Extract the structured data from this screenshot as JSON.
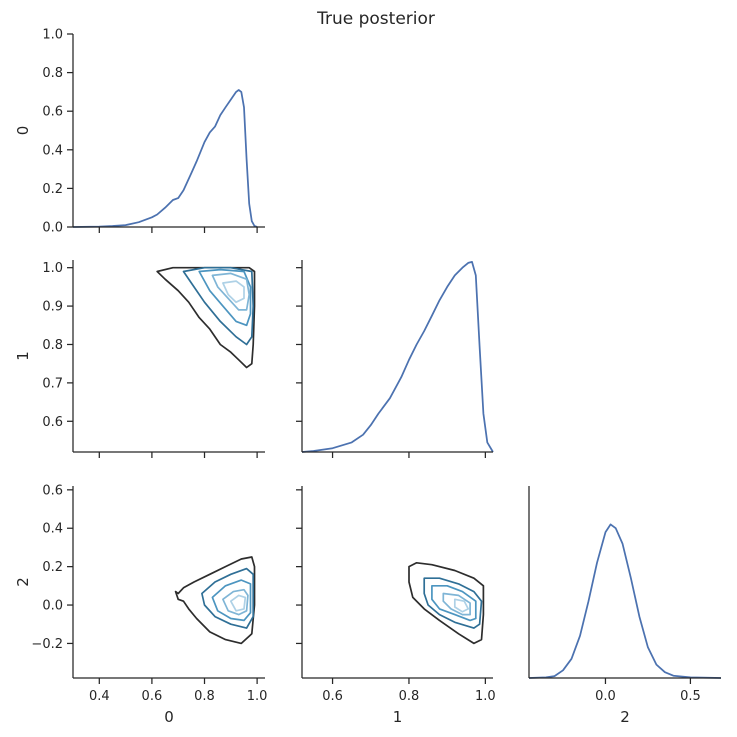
{
  "chart_data": {
    "type": "pairplot",
    "title": "True posterior",
    "variables": [
      "0",
      "1",
      "2"
    ],
    "colors": {
      "marginal_line": "#4c72b0",
      "contour_levels": [
        "#2d2d2d",
        "#2f6f96",
        "#4c95c0",
        "#7fb5d6",
        "#aed1e6"
      ]
    },
    "panels": [
      {
        "id": "diag-0",
        "kind": "marginal-kde",
        "variable": "0",
        "xlim": [
          0.3,
          1.03
        ],
        "ylim": [
          0,
          1.0
        ],
        "yticks": [
          0.0,
          0.2,
          0.4,
          0.6,
          0.8,
          1.0
        ],
        "ylabel": "0",
        "points": [
          [
            0.3,
            0
          ],
          [
            0.4,
            0.002
          ],
          [
            0.45,
            0.005
          ],
          [
            0.5,
            0.01
          ],
          [
            0.55,
            0.025
          ],
          [
            0.6,
            0.05
          ],
          [
            0.62,
            0.065
          ],
          [
            0.65,
            0.1
          ],
          [
            0.68,
            0.14
          ],
          [
            0.7,
            0.15
          ],
          [
            0.72,
            0.19
          ],
          [
            0.75,
            0.28
          ],
          [
            0.77,
            0.34
          ],
          [
            0.8,
            0.44
          ],
          [
            0.82,
            0.49
          ],
          [
            0.84,
            0.52
          ],
          [
            0.86,
            0.58
          ],
          [
            0.88,
            0.62
          ],
          [
            0.9,
            0.66
          ],
          [
            0.92,
            0.7
          ],
          [
            0.93,
            0.71
          ],
          [
            0.94,
            0.7
          ],
          [
            0.95,
            0.62
          ],
          [
            0.96,
            0.35
          ],
          [
            0.97,
            0.12
          ],
          [
            0.98,
            0.03
          ],
          [
            0.99,
            0.005
          ],
          [
            1.0,
            0.0
          ]
        ]
      },
      {
        "id": "pair-0-1",
        "kind": "kde-contours",
        "xlim": [
          0.3,
          1.03
        ],
        "ylim": [
          0.52,
          1.02
        ],
        "yticks": [
          0.6,
          0.7,
          0.8,
          0.9,
          1.0
        ],
        "ylabel": "1",
        "contours": [
          [
            [
              0.62,
              0.99
            ],
            [
              0.68,
              1.0
            ],
            [
              0.8,
              1.0
            ],
            [
              0.92,
              1.0
            ],
            [
              0.97,
              1.0
            ],
            [
              0.99,
              0.99
            ],
            [
              0.99,
              0.9
            ],
            [
              0.985,
              0.8
            ],
            [
              0.98,
              0.75
            ],
            [
              0.96,
              0.74
            ],
            [
              0.93,
              0.76
            ],
            [
              0.9,
              0.78
            ],
            [
              0.86,
              0.8
            ],
            [
              0.82,
              0.84
            ],
            [
              0.78,
              0.87
            ],
            [
              0.74,
              0.91
            ],
            [
              0.7,
              0.94
            ],
            [
              0.65,
              0.97
            ],
            [
              0.62,
              0.99
            ]
          ],
          [
            [
              0.72,
              0.99
            ],
            [
              0.8,
              1.0
            ],
            [
              0.9,
              1.0
            ],
            [
              0.98,
              0.99
            ],
            [
              0.985,
              0.9
            ],
            [
              0.98,
              0.82
            ],
            [
              0.96,
              0.8
            ],
            [
              0.92,
              0.82
            ],
            [
              0.86,
              0.86
            ],
            [
              0.8,
              0.91
            ],
            [
              0.76,
              0.95
            ],
            [
              0.72,
              0.99
            ]
          ],
          [
            [
              0.78,
              0.99
            ],
            [
              0.86,
              0.995
            ],
            [
              0.95,
              0.99
            ],
            [
              0.975,
              0.95
            ],
            [
              0.975,
              0.88
            ],
            [
              0.96,
              0.85
            ],
            [
              0.92,
              0.86
            ],
            [
              0.87,
              0.9
            ],
            [
              0.82,
              0.94
            ],
            [
              0.78,
              0.99
            ]
          ],
          [
            [
              0.83,
              0.98
            ],
            [
              0.9,
              0.985
            ],
            [
              0.96,
              0.97
            ],
            [
              0.97,
              0.93
            ],
            [
              0.96,
              0.89
            ],
            [
              0.93,
              0.89
            ],
            [
              0.89,
              0.92
            ],
            [
              0.85,
              0.95
            ],
            [
              0.83,
              0.98
            ]
          ],
          [
            [
              0.87,
              0.96
            ],
            [
              0.92,
              0.965
            ],
            [
              0.95,
              0.95
            ],
            [
              0.95,
              0.92
            ],
            [
              0.92,
              0.91
            ],
            [
              0.89,
              0.93
            ],
            [
              0.87,
              0.96
            ]
          ]
        ]
      },
      {
        "id": "diag-1",
        "kind": "marginal-kde",
        "variable": "1",
        "xlim": [
          0.52,
          1.02
        ],
        "ylim": [
          0,
          1.0
        ],
        "points": [
          [
            0.52,
            0
          ],
          [
            0.55,
            0.005
          ],
          [
            0.6,
            0.02
          ],
          [
            0.65,
            0.05
          ],
          [
            0.68,
            0.09
          ],
          [
            0.7,
            0.14
          ],
          [
            0.72,
            0.2
          ],
          [
            0.75,
            0.28
          ],
          [
            0.78,
            0.39
          ],
          [
            0.8,
            0.48
          ],
          [
            0.82,
            0.56
          ],
          [
            0.84,
            0.63
          ],
          [
            0.86,
            0.71
          ],
          [
            0.88,
            0.79
          ],
          [
            0.9,
            0.86
          ],
          [
            0.92,
            0.92
          ],
          [
            0.94,
            0.96
          ],
          [
            0.955,
            0.985
          ],
          [
            0.965,
            0.99
          ],
          [
            0.975,
            0.92
          ],
          [
            0.985,
            0.55
          ],
          [
            0.995,
            0.2
          ],
          [
            1.005,
            0.05
          ],
          [
            1.02,
            0.0
          ]
        ]
      },
      {
        "id": "pair-0-2",
        "kind": "kde-contours",
        "xlim": [
          0.3,
          1.03
        ],
        "ylim": [
          -0.38,
          0.62
        ],
        "yticks": [
          -0.2,
          0.0,
          0.2,
          0.4,
          0.6
        ],
        "xticks": [
          0.4,
          0.6,
          0.8,
          1.0
        ],
        "xlabel": "0",
        "ylabel": "2",
        "contours": [
          [
            [
              0.7,
              0.06
            ],
            [
              0.72,
              0.09
            ],
            [
              0.76,
              0.12
            ],
            [
              0.82,
              0.16
            ],
            [
              0.88,
              0.2
            ],
            [
              0.94,
              0.24
            ],
            [
              0.98,
              0.25
            ],
            [
              0.99,
              0.2
            ],
            [
              0.99,
              0.0
            ],
            [
              0.98,
              -0.15
            ],
            [
              0.94,
              -0.2
            ],
            [
              0.88,
              -0.18
            ],
            [
              0.82,
              -0.14
            ],
            [
              0.77,
              -0.07
            ],
            [
              0.74,
              -0.02
            ],
            [
              0.72,
              0.02
            ],
            [
              0.7,
              0.03
            ],
            [
              0.69,
              0.07
            ],
            [
              0.7,
              0.06
            ]
          ],
          [
            [
              0.79,
              0.06
            ],
            [
              0.84,
              0.12
            ],
            [
              0.9,
              0.16
            ],
            [
              0.96,
              0.19
            ],
            [
              0.985,
              0.16
            ],
            [
              0.985,
              -0.06
            ],
            [
              0.96,
              -0.12
            ],
            [
              0.9,
              -0.1
            ],
            [
              0.84,
              -0.06
            ],
            [
              0.8,
              0.0
            ],
            [
              0.79,
              0.06
            ]
          ],
          [
            [
              0.83,
              0.04
            ],
            [
              0.88,
              0.1
            ],
            [
              0.94,
              0.13
            ],
            [
              0.975,
              0.11
            ],
            [
              0.975,
              -0.04
            ],
            [
              0.95,
              -0.08
            ],
            [
              0.9,
              -0.07
            ],
            [
              0.85,
              -0.03
            ],
            [
              0.83,
              0.04
            ]
          ],
          [
            [
              0.87,
              0.03
            ],
            [
              0.91,
              0.07
            ],
            [
              0.95,
              0.08
            ],
            [
              0.965,
              0.05
            ],
            [
              0.96,
              -0.03
            ],
            [
              0.93,
              -0.05
            ],
            [
              0.89,
              -0.03
            ],
            [
              0.87,
              0.03
            ]
          ],
          [
            [
              0.9,
              0.02
            ],
            [
              0.93,
              0.05
            ],
            [
              0.955,
              0.04
            ],
            [
              0.95,
              -0.02
            ],
            [
              0.92,
              -0.03
            ],
            [
              0.9,
              0.02
            ]
          ]
        ]
      },
      {
        "id": "pair-1-2",
        "kind": "kde-contours",
        "xlim": [
          0.52,
          1.02
        ],
        "ylim": [
          -0.38,
          0.62
        ],
        "xticks": [
          0.6,
          0.8,
          1.0
        ],
        "xlabel": "1",
        "contours": [
          [
            [
              0.8,
              0.2
            ],
            [
              0.82,
              0.22
            ],
            [
              0.86,
              0.21
            ],
            [
              0.92,
              0.18
            ],
            [
              0.97,
              0.14
            ],
            [
              0.995,
              0.1
            ],
            [
              0.995,
              -0.05
            ],
            [
              0.99,
              -0.18
            ],
            [
              0.97,
              -0.2
            ],
            [
              0.93,
              -0.15
            ],
            [
              0.88,
              -0.08
            ],
            [
              0.84,
              -0.02
            ],
            [
              0.81,
              0.04
            ],
            [
              0.8,
              0.12
            ],
            [
              0.8,
              0.2
            ]
          ],
          [
            [
              0.84,
              0.14
            ],
            [
              0.88,
              0.14
            ],
            [
              0.93,
              0.11
            ],
            [
              0.97,
              0.07
            ],
            [
              0.99,
              0.02
            ],
            [
              0.985,
              -0.1
            ],
            [
              0.97,
              -0.12
            ],
            [
              0.92,
              -0.09
            ],
            [
              0.88,
              -0.05
            ],
            [
              0.85,
              0.0
            ],
            [
              0.84,
              0.06
            ],
            [
              0.84,
              0.14
            ]
          ],
          [
            [
              0.86,
              0.1
            ],
            [
              0.9,
              0.1
            ],
            [
              0.94,
              0.07
            ],
            [
              0.975,
              0.02
            ],
            [
              0.975,
              -0.07
            ],
            [
              0.96,
              -0.08
            ],
            [
              0.92,
              -0.05
            ],
            [
              0.88,
              -0.02
            ],
            [
              0.86,
              0.03
            ],
            [
              0.86,
              0.1
            ]
          ],
          [
            [
              0.89,
              0.06
            ],
            [
              0.93,
              0.05
            ],
            [
              0.96,
              0.01
            ],
            [
              0.96,
              -0.05
            ],
            [
              0.94,
              -0.05
            ],
            [
              0.91,
              -0.02
            ],
            [
              0.89,
              0.02
            ],
            [
              0.89,
              0.06
            ]
          ],
          [
            [
              0.92,
              0.03
            ],
            [
              0.945,
              0.02
            ],
            [
              0.955,
              -0.02
            ],
            [
              0.94,
              -0.035
            ],
            [
              0.92,
              -0.01
            ],
            [
              0.92,
              0.03
            ]
          ]
        ]
      },
      {
        "id": "diag-2",
        "kind": "marginal-kde",
        "variable": "2",
        "xlim": [
          -0.45,
          0.68
        ],
        "ylim": [
          0,
          1.0
        ],
        "xticks": [
          0.0,
          0.5
        ],
        "xlabel": "2",
        "points": [
          [
            -0.45,
            0
          ],
          [
            -0.35,
            0.003
          ],
          [
            -0.3,
            0.01
          ],
          [
            -0.25,
            0.04
          ],
          [
            -0.2,
            0.1
          ],
          [
            -0.15,
            0.22
          ],
          [
            -0.1,
            0.4
          ],
          [
            -0.05,
            0.6
          ],
          [
            0.0,
            0.76
          ],
          [
            0.03,
            0.8
          ],
          [
            0.06,
            0.78
          ],
          [
            0.1,
            0.7
          ],
          [
            0.15,
            0.52
          ],
          [
            0.2,
            0.32
          ],
          [
            0.25,
            0.16
          ],
          [
            0.3,
            0.07
          ],
          [
            0.35,
            0.03
          ],
          [
            0.4,
            0.012
          ],
          [
            0.5,
            0.003
          ],
          [
            0.68,
            0
          ]
        ]
      }
    ]
  }
}
